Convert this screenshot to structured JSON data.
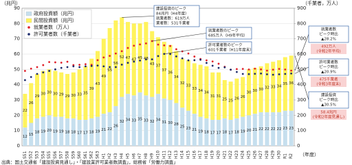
{
  "chart_data": {
    "type": "bar",
    "stacked": true,
    "categories": [
      "S51",
      "S52",
      "S53",
      "S54",
      "S55",
      "S56",
      "S57",
      "S58",
      "S59",
      "S60",
      "S61",
      "S62",
      "S63",
      "H1",
      "H2",
      "H3",
      "H4",
      "H5",
      "H6",
      "H7",
      "H8",
      "H9",
      "H10",
      "H11",
      "H12",
      "H13",
      "H14",
      "H15",
      "H16",
      "H17",
      "H18",
      "H19",
      "H20",
      "H21",
      "H22",
      "H23",
      "H24",
      "H25",
      "H26",
      "H27",
      "H28",
      "H29",
      "H30",
      "R1",
      "R2"
    ],
    "series": [
      {
        "name": "政府投資額（兆円）",
        "color": "#c6dfee",
        "values": [
          12,
          15,
          18,
          19,
          20,
          19,
          19,
          18,
          18,
          17,
          17,
          18,
          19,
          21,
          22,
          26,
          32,
          34,
          33,
          35,
          33,
          32,
          34,
          31,
          30,
          28,
          25,
          23,
          21,
          19,
          18,
          17,
          17,
          18,
          17,
          18,
          19,
          20,
          21,
          22,
          22,
          22,
          22,
          23,
          23
        ]
      },
      {
        "name": "民間投資額（兆円）",
        "color": "#fff35c",
        "values": [
          22,
          26,
          29,
          30,
          30,
          30,
          29,
          29,
          30,
          33,
          35,
          39,
          43,
          49,
          55,
          56,
          52,
          47,
          47,
          45,
          48,
          43,
          37,
          37,
          36,
          34,
          32,
          33,
          33,
          34,
          34,
          31,
          31,
          25,
          25,
          26,
          26,
          30,
          30,
          30,
          32,
          33,
          34,
          35,
          36
        ]
      },
      {
        "name": "就業者数（万人）",
        "color": "#e0202a",
        "axis": "y2",
        "values": [
          490,
          505,
          515,
          528,
          548,
          546,
          544,
          550,
          528,
          530,
          534,
          530,
          560,
          578,
          588,
          604,
          619,
          640,
          655,
          663,
          670,
          685,
          662,
          657,
          653,
          632,
          618,
          604,
          584,
          568,
          559,
          552,
          537,
          517,
          498,
          502,
          503,
          499,
          505,
          500,
          492,
          498,
          503,
          499,
          492
        ]
      },
      {
        "name": "許可業者数（千業者）",
        "color": "#1b2a6b",
        "axis": "y2",
        "values": [
          430,
          450,
          470,
          480,
          490,
          500,
          510,
          515,
          520,
          515,
          520,
          522,
          525,
          520,
          515,
          515,
          531,
          543,
          551,
          558,
          565,
          566,
          587,
          601,
          600,
          585,
          572,
          559,
          560,
          563,
          542,
          524,
          510,
          513,
          498,
          483,
          470,
          469,
          471,
          473,
          468,
          465,
          468,
          470,
          473
        ]
      }
    ],
    "ylim": [
      0,
      90
    ],
    "yticks": [
      0,
      10,
      20,
      30,
      40,
      50,
      60,
      70,
      80,
      90
    ],
    "y2lim": [
      0,
      900
    ],
    "y2ticks": [
      0,
      100,
      200,
      300,
      400,
      500,
      600,
      700,
      800,
      900
    ],
    "y_label": "（兆円）",
    "y2_label": "（千業者，万人）",
    "x_label": "（年度）",
    "grid": true,
    "callouts": [
      [
        "建設投資のピーク",
        "84兆円（H4年度）",
        "就業者数：619万人",
        "業者数：531千業者"
      ],
      [
        "就業者数のピーク",
        "685万人（H9年平均）"
      ],
      [
        "許可業者数のピーク",
        "601千業者（H11年度末）"
      ]
    ],
    "summary_boxes": [
      {
        "title": [
          "就業者数",
          "ピーク時比",
          "▲28.2%"
        ],
        "detail": [
          "492万人",
          "(令和2年平均)"
        ]
      },
      {
        "title": [
          "許可業者数",
          "ピーク時比",
          "▲20.9%"
        ],
        "detail": [
          "475千業者",
          "(令和3年度末)"
        ]
      },
      {
        "title": [
          "建設投資",
          "ピーク時比",
          "▲30.5%"
        ],
        "detail": [
          "58.4兆円",
          "(令和2年度見通し)"
        ]
      }
    ],
    "source": "出典：国土交通省「建設投資見通し」・「建設業許可業者数調査」，総務省「労働力調査」"
  }
}
